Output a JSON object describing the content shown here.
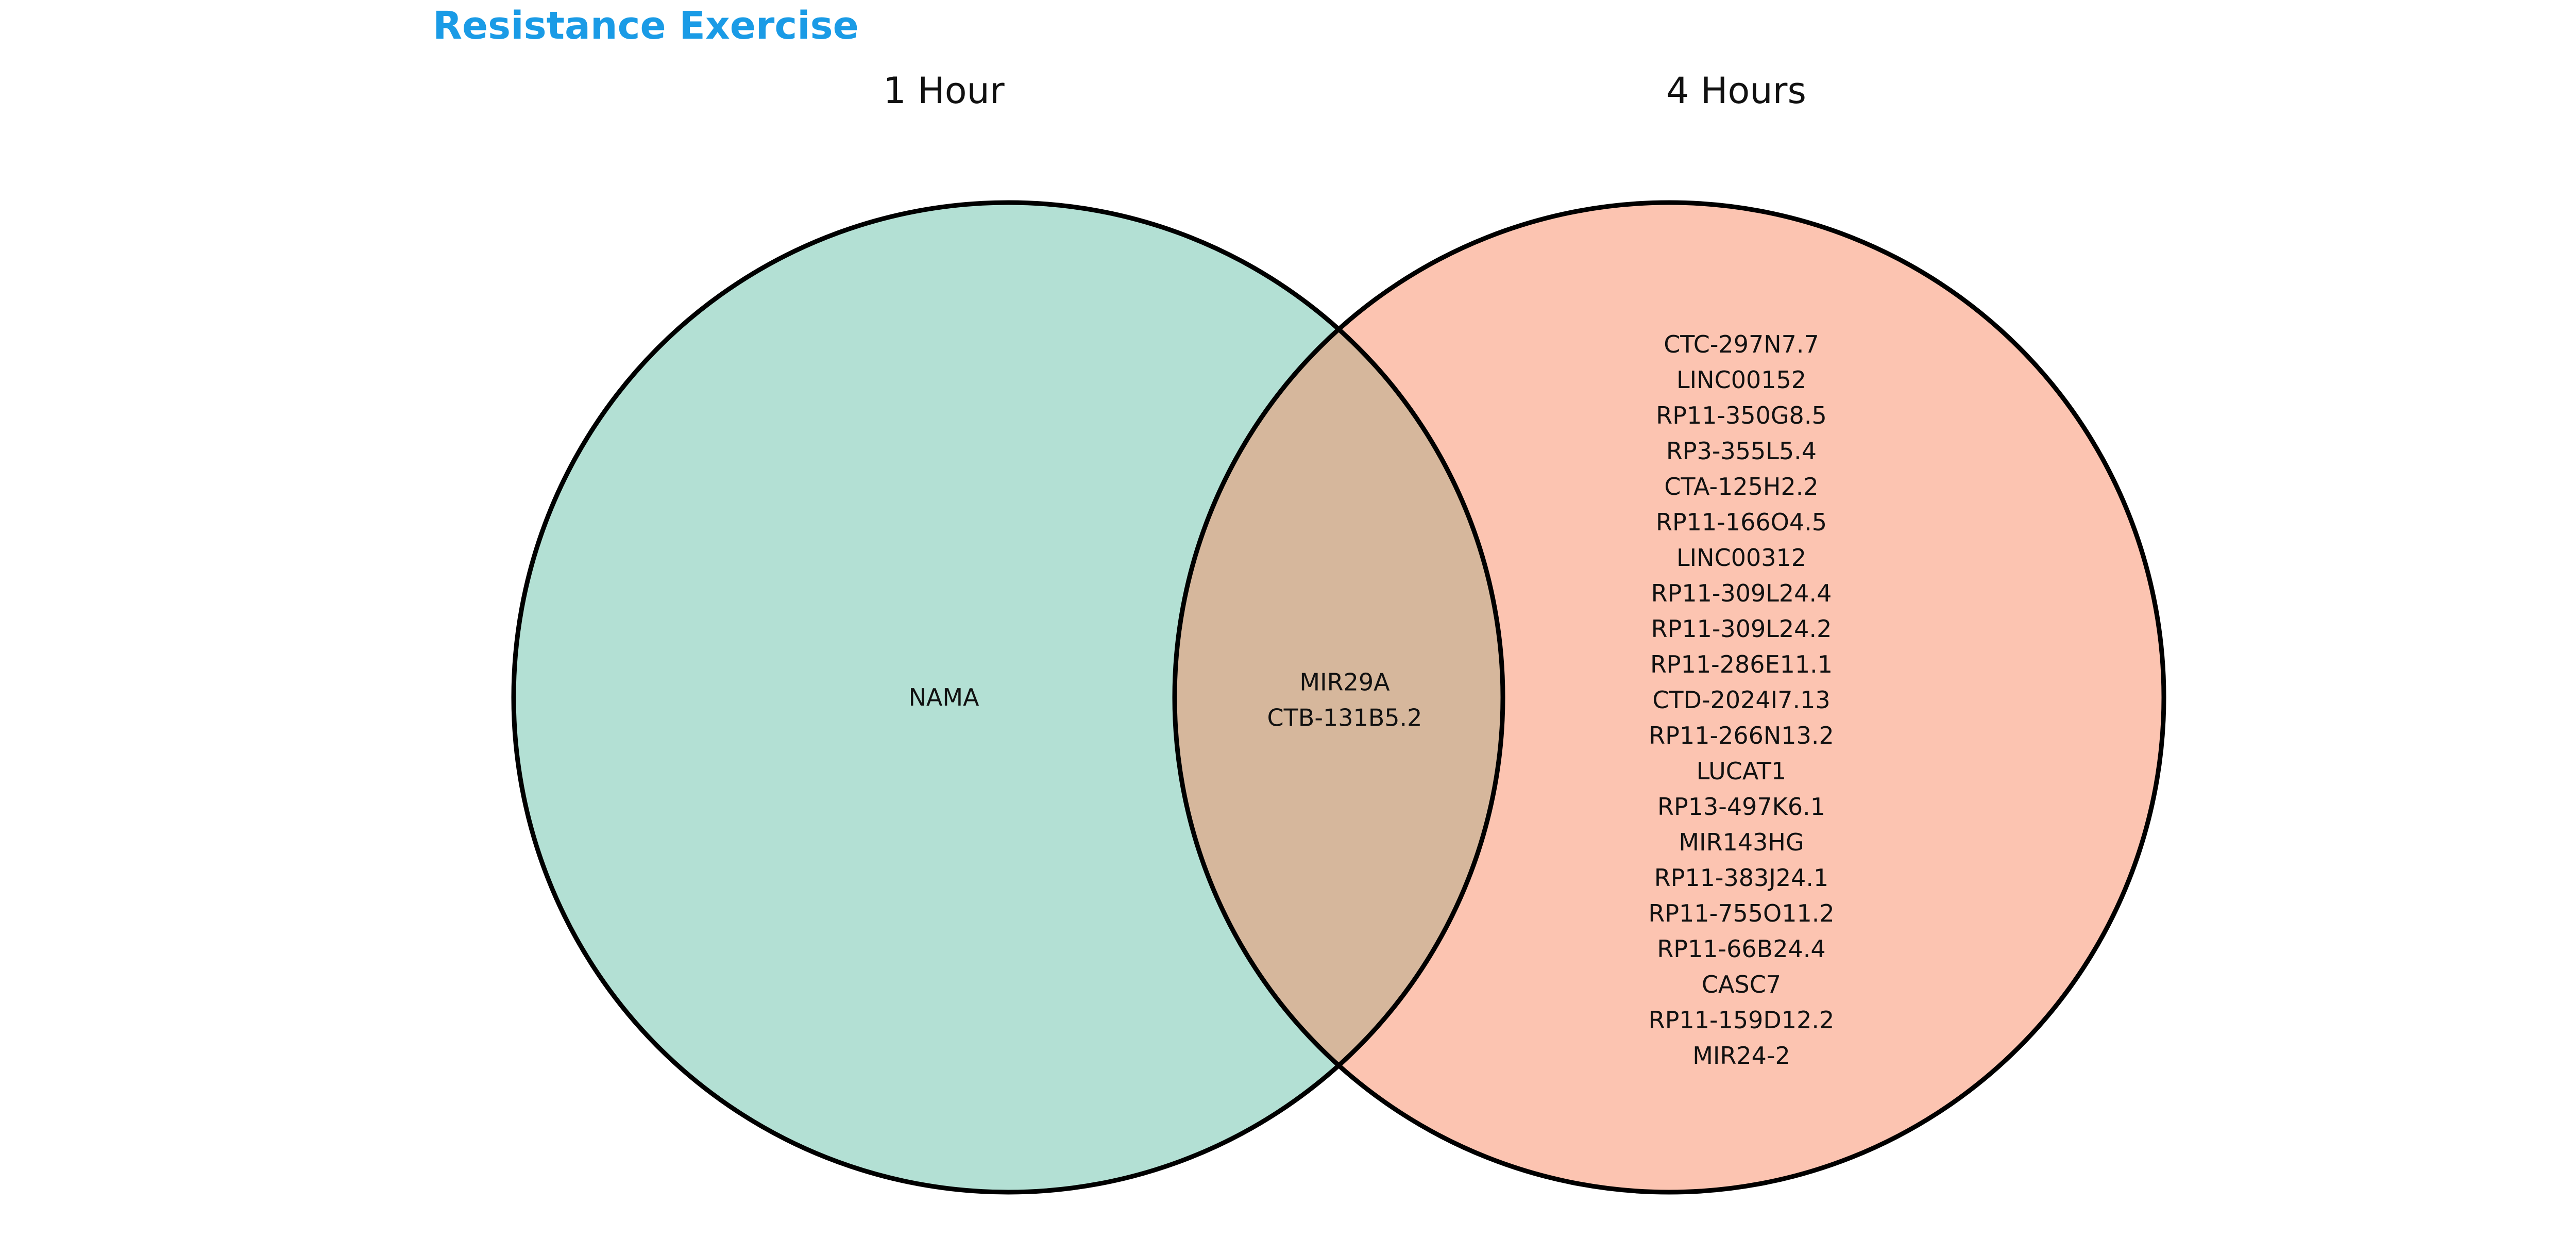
{
  "title": "Resistance Exercise",
  "sets": [
    {
      "name": "1 Hour",
      "color": "#b3e0d4"
    },
    {
      "name": "4 Hours",
      "color": "#fcc4b1"
    }
  ],
  "intersection_color": "#d6b79c",
  "regions": {
    "only_1_hour": [
      "NAMA"
    ],
    "both": [
      "MIR29A",
      "CTB-131B5.2"
    ],
    "only_4_hours": [
      "CTC-297N7.7",
      "LINC00152",
      "RP11-350G8.5",
      "RP3-355L5.4",
      "CTA-125H2.2",
      "RP11-166O4.5",
      "LINC00312",
      "RP11-309L24.4",
      "RP11-309L24.2",
      "RP11-286E11.1",
      "CTD-2024I7.13",
      "RP11-266N13.2",
      "LUCAT1",
      "RP13-497K6.1",
      "MIR143HG",
      "RP11-383J24.1",
      "RP11-755O11.2",
      "RP11-66B24.4",
      "CASC7",
      "RP11-159D12.2",
      "MIR24-2"
    ]
  }
}
